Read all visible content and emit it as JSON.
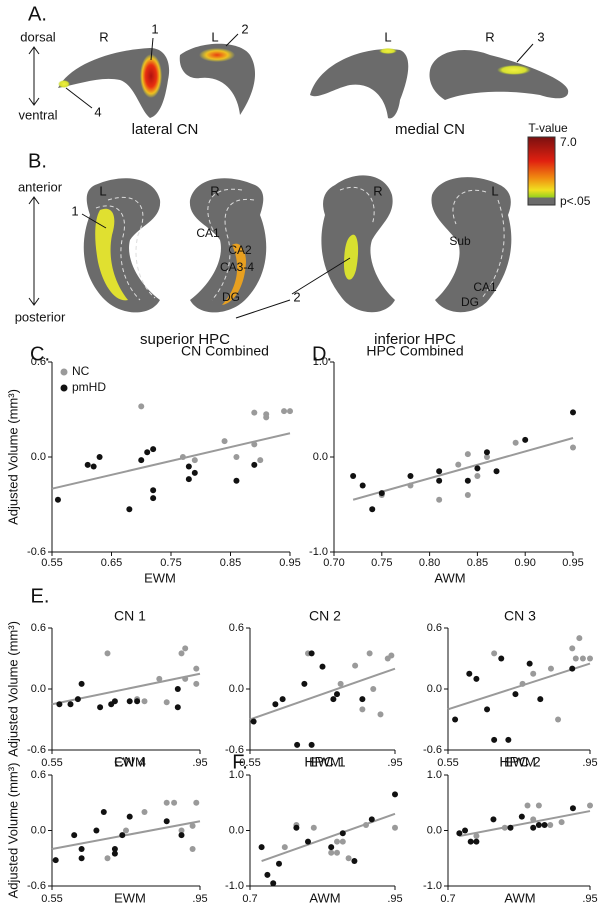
{
  "figure": {
    "panel_a": {
      "letter": "A.",
      "dorsal": "dorsal",
      "ventral": "ventral",
      "hemispheres": [
        "R",
        "L",
        "L",
        "R"
      ],
      "clusters": [
        "1",
        "2",
        "3",
        "4"
      ],
      "captions": [
        "lateral CN",
        "medial CN"
      ]
    },
    "colorbar": {
      "title": "T-value",
      "max": "7.0",
      "min": "p<.05"
    },
    "panel_b": {
      "letter": "B.",
      "anterior": "anterior",
      "posterior": "posterior",
      "hemispheres": [
        "L",
        "R",
        "R",
        "L"
      ],
      "clusters": [
        "1",
        "2"
      ],
      "regions": [
        "CA1",
        "CA2",
        "CA3-4",
        "DG",
        "Sub",
        "CA1",
        "DG"
      ],
      "captions": [
        "superior HPC",
        "inferior HPC"
      ]
    }
  },
  "chart_data": [
    {
      "type": "scatter",
      "panel": "C.",
      "title": "CN Combined",
      "xlabel": "EWM",
      "ylabel": "Adjusted Volume (mm³)",
      "xlim": [
        0.55,
        0.95
      ],
      "ylim": [
        -0.6,
        0.6
      ],
      "xticks": [
        0.55,
        0.65,
        0.75,
        0.85,
        0.95
      ],
      "yticks": [
        0.6,
        {
          "value": 0,
          "label": "0.0"
        },
        -0.6
      ],
      "legend": "upper left",
      "series": [
        {
          "name": "NC",
          "color": "#9a9a9a",
          "x": [
            0.7,
            0.77,
            0.79,
            0.84,
            0.86,
            0.89,
            0.91,
            0.91,
            0.94,
            0.95,
            0.89,
            0.9
          ],
          "y": [
            0.32,
            0.0,
            -0.02,
            0.1,
            0.0,
            0.28,
            0.27,
            0.25,
            0.29,
            0.29,
            0.08,
            -0.02
          ]
        },
        {
          "name": "pmHD",
          "color": "#111111",
          "x": [
            0.56,
            0.61,
            0.62,
            0.63,
            0.68,
            0.7,
            0.71,
            0.72,
            0.72,
            0.72,
            0.78,
            0.78,
            0.79,
            0.86,
            0.89
          ],
          "y": [
            -0.27,
            -0.05,
            -0.06,
            0.0,
            -0.33,
            -0.02,
            0.03,
            0.05,
            -0.21,
            -0.26,
            -0.06,
            -0.14,
            -0.1,
            -0.15,
            -0.05
          ]
        }
      ],
      "trendline": {
        "x": [
          0.55,
          0.95
        ],
        "y": [
          -0.2,
          0.15
        ]
      }
    },
    {
      "type": "scatter",
      "panel": "D.",
      "title": "HPC Combined",
      "xlabel": "AWM",
      "xlim": [
        0.7,
        0.95
      ],
      "ylim": [
        -1,
        1
      ],
      "xticks": [
        {
          "value": 0.7,
          "label": "0.70"
        },
        0.75,
        {
          "value": 0.8,
          "label": "0.80"
        },
        0.85,
        {
          "value": 0.9,
          "label": "0.90"
        },
        0.95
      ],
      "yticks": [
        {
          "value": 1,
          "label": "1.0"
        },
        {
          "value": 0,
          "label": "0.0"
        },
        {
          "value": -1,
          "label": "-1.0"
        }
      ],
      "series": [
        {
          "color": "#9a9a9a",
          "x": [
            0.75,
            0.78,
            0.81,
            0.83,
            0.84,
            0.85,
            0.86,
            0.89,
            0.95,
            0.84
          ],
          "y": [
            -0.4,
            -0.3,
            -0.45,
            -0.08,
            -0.4,
            -0.2,
            0.0,
            0.15,
            0.1,
            0.03
          ]
        },
        {
          "color": "#111111",
          "x": [
            0.72,
            0.73,
            0.74,
            0.75,
            0.78,
            0.81,
            0.81,
            0.84,
            0.85,
            0.86,
            0.87,
            0.9,
            0.95
          ],
          "y": [
            -0.2,
            -0.3,
            -0.55,
            -0.38,
            -0.2,
            -0.15,
            -0.25,
            -0.25,
            -0.12,
            0.05,
            -0.15,
            0.18,
            0.47
          ]
        }
      ],
      "trendline": {
        "x": [
          0.72,
          0.95
        ],
        "y": [
          -0.45,
          0.2
        ]
      }
    },
    {
      "type": "scatter",
      "panel": "E.",
      "title": "CN 1",
      "xlabel": "EWM",
      "ylabel": "Adjusted Volume (mm³)",
      "xlim": [
        0.55,
        0.95
      ],
      "ylim": [
        -0.6,
        0.6
      ],
      "xticks": [
        0.55,
        {
          "value": 0.95,
          "label": ".95"
        }
      ],
      "yticks": [
        0.6,
        {
          "value": 0,
          "label": "0.0"
        },
        -0.6
      ],
      "series": [
        {
          "color": "#9a9a9a",
          "x": [
            0.7,
            0.78,
            0.8,
            0.84,
            0.9,
            0.91,
            0.91,
            0.94,
            0.94,
            0.86
          ],
          "y": [
            0.35,
            -0.1,
            -0.12,
            0.1,
            0.35,
            0.4,
            0.1,
            0.2,
            0.05,
            -0.13
          ]
        },
        {
          "color": "#111111",
          "x": [
            0.57,
            0.6,
            0.62,
            0.63,
            0.68,
            0.71,
            0.72,
            0.76,
            0.78,
            0.89,
            0.89
          ],
          "y": [
            -0.15,
            -0.15,
            -0.1,
            0.05,
            -0.18,
            -0.15,
            -0.12,
            -0.12,
            -0.12,
            -0.18,
            0.0
          ]
        }
      ],
      "trendline": {
        "x": [
          0.55,
          0.95
        ],
        "y": [
          -0.15,
          0.15
        ]
      }
    },
    {
      "type": "scatter",
      "title": "CN 2",
      "xlabel": "EWM",
      "xlim": [
        0.55,
        0.95
      ],
      "ylim": [
        -0.6,
        0.6
      ],
      "xticks": [
        0.55,
        {
          "value": 0.95,
          "label": ".95"
        }
      ],
      "yticks": [
        0.6,
        {
          "value": 0,
          "label": "0.0"
        },
        -0.6
      ],
      "series": [
        {
          "color": "#9a9a9a",
          "x": [
            0.71,
            0.8,
            0.84,
            0.86,
            0.88,
            0.89,
            0.91,
            0.94,
            0.93
          ],
          "y": [
            0.35,
            0.05,
            0.23,
            -0.2,
            0.35,
            0.0,
            -0.25,
            0.33,
            0.3
          ]
        },
        {
          "color": "#111111",
          "x": [
            0.56,
            0.62,
            0.64,
            0.68,
            0.7,
            0.72,
            0.72,
            0.75,
            0.78,
            0.79,
            0.86
          ],
          "y": [
            -0.32,
            -0.15,
            -0.1,
            -0.55,
            0.05,
            0.35,
            -0.55,
            0.22,
            -0.1,
            -0.05,
            -0.1
          ]
        }
      ],
      "trendline": {
        "x": [
          0.55,
          0.95
        ],
        "y": [
          -0.3,
          0.2
        ]
      }
    },
    {
      "type": "scatter",
      "title": "CN 3",
      "xlabel": "EWM",
      "xlim": [
        0.55,
        0.95
      ],
      "ylim": [
        -0.6,
        0.6
      ],
      "xticks": [
        0.55,
        {
          "value": 0.95,
          "label": ".95"
        }
      ],
      "yticks": [
        0.6,
        {
          "value": 0,
          "label": "0.0"
        },
        -0.6
      ],
      "series": [
        {
          "color": "#9a9a9a",
          "x": [
            0.68,
            0.76,
            0.79,
            0.84,
            0.86,
            0.9,
            0.91,
            0.92,
            0.93,
            0.95
          ],
          "y": [
            0.35,
            0.05,
            0.15,
            0.2,
            -0.3,
            0.4,
            0.3,
            0.5,
            0.3,
            0.3
          ]
        },
        {
          "color": "#111111",
          "x": [
            0.57,
            0.61,
            0.63,
            0.66,
            0.68,
            0.7,
            0.72,
            0.74,
            0.78,
            0.81,
            0.9
          ],
          "y": [
            -0.3,
            0.15,
            0.1,
            -0.2,
            -0.5,
            0.3,
            -0.5,
            -0.05,
            0.25,
            -0.1,
            0.2
          ]
        }
      ],
      "trendline": {
        "x": [
          0.55,
          0.95
        ],
        "y": [
          -0.2,
          0.25
        ]
      }
    },
    {
      "type": "scatter",
      "title": "CN 4",
      "xlabel": "EWM",
      "ylabel": "Adjusted Volume (mm³)",
      "xlim": [
        0.55,
        0.95
      ],
      "ylim": [
        -0.6,
        0.6
      ],
      "xticks": [
        0.55,
        {
          "value": 0.95,
          "label": ".95"
        }
      ],
      "yticks": [
        0.6,
        {
          "value": 0,
          "label": "0.0"
        },
        -0.6
      ],
      "series": [
        {
          "color": "#9a9a9a",
          "x": [
            0.7,
            0.75,
            0.8,
            0.86,
            0.88,
            0.9,
            0.93,
            0.93,
            0.94
          ],
          "y": [
            -0.3,
            0.0,
            0.2,
            0.3,
            0.3,
            0.0,
            -0.2,
            0.05,
            0.3
          ]
        },
        {
          "color": "#111111",
          "x": [
            0.56,
            0.61,
            0.63,
            0.63,
            0.67,
            0.69,
            0.72,
            0.72,
            0.74,
            0.76,
            0.86,
            0.9
          ],
          "y": [
            -0.32,
            -0.05,
            -0.2,
            -0.3,
            0.0,
            0.2,
            -0.2,
            -0.25,
            -0.05,
            0.15,
            0.1,
            -0.05
          ]
        }
      ],
      "trendline": {
        "x": [
          0.55,
          0.95
        ],
        "y": [
          -0.2,
          0.1
        ]
      }
    },
    {
      "type": "scatter",
      "panel": "F.",
      "title": "HPC 1",
      "xlabel": "AWM",
      "xlim": [
        0.7,
        0.95
      ],
      "ylim": [
        -1,
        1
      ],
      "xticks": [
        0.7,
        {
          "value": 0.95,
          "label": ".95"
        }
      ],
      "yticks": [
        {
          "value": 1,
          "label": "1.0"
        },
        {
          "value": 0,
          "label": "0.0"
        },
        {
          "value": -1,
          "label": "-1.0"
        }
      ],
      "series": [
        {
          "color": "#9a9a9a",
          "x": [
            0.76,
            0.78,
            0.81,
            0.84,
            0.85,
            0.85,
            0.86,
            0.87,
            0.9,
            0.95
          ],
          "y": [
            -0.3,
            0.1,
            0.05,
            -0.4,
            -0.2,
            -0.4,
            -0.2,
            -0.5,
            0.1,
            0.05
          ]
        },
        {
          "color": "#111111",
          "x": [
            0.72,
            0.73,
            0.74,
            0.75,
            0.78,
            0.8,
            0.84,
            0.86,
            0.88,
            0.91,
            0.95
          ],
          "y": [
            -0.3,
            -0.8,
            -0.95,
            -0.6,
            0.05,
            -0.2,
            -0.3,
            -0.05,
            -0.55,
            0.2,
            0.65
          ]
        }
      ],
      "trendline": {
        "x": [
          0.72,
          0.95
        ],
        "y": [
          -0.55,
          0.3
        ]
      }
    },
    {
      "type": "scatter",
      "title": "HPC 2",
      "xlabel": "AWM",
      "xlim": [
        0.7,
        0.95
      ],
      "ylim": [
        -1,
        1
      ],
      "xticks": [
        0.7,
        {
          "value": 0.95,
          "label": ".95"
        }
      ],
      "yticks": [
        {
          "value": 1,
          "label": "1.0"
        },
        {
          "value": 0,
          "label": "0.0"
        },
        {
          "value": -1,
          "label": "-1.0"
        }
      ],
      "series": [
        {
          "color": "#9a9a9a",
          "x": [
            0.75,
            0.8,
            0.84,
            0.85,
            0.86,
            0.88,
            0.9,
            0.95
          ],
          "y": [
            -0.1,
            0.05,
            0.45,
            0.2,
            0.45,
            0.1,
            0.15,
            0.45
          ]
        },
        {
          "color": "#111111",
          "x": [
            0.72,
            0.73,
            0.74,
            0.75,
            0.78,
            0.81,
            0.83,
            0.85,
            0.86,
            0.87,
            0.92
          ],
          "y": [
            -0.05,
            0.0,
            -0.2,
            -0.2,
            0.2,
            0.05,
            0.25,
            0.05,
            0.1,
            0.1,
            0.4
          ]
        }
      ],
      "trendline": {
        "x": [
          0.72,
          0.95
        ],
        "y": [
          -0.1,
          0.35
        ]
      }
    }
  ]
}
